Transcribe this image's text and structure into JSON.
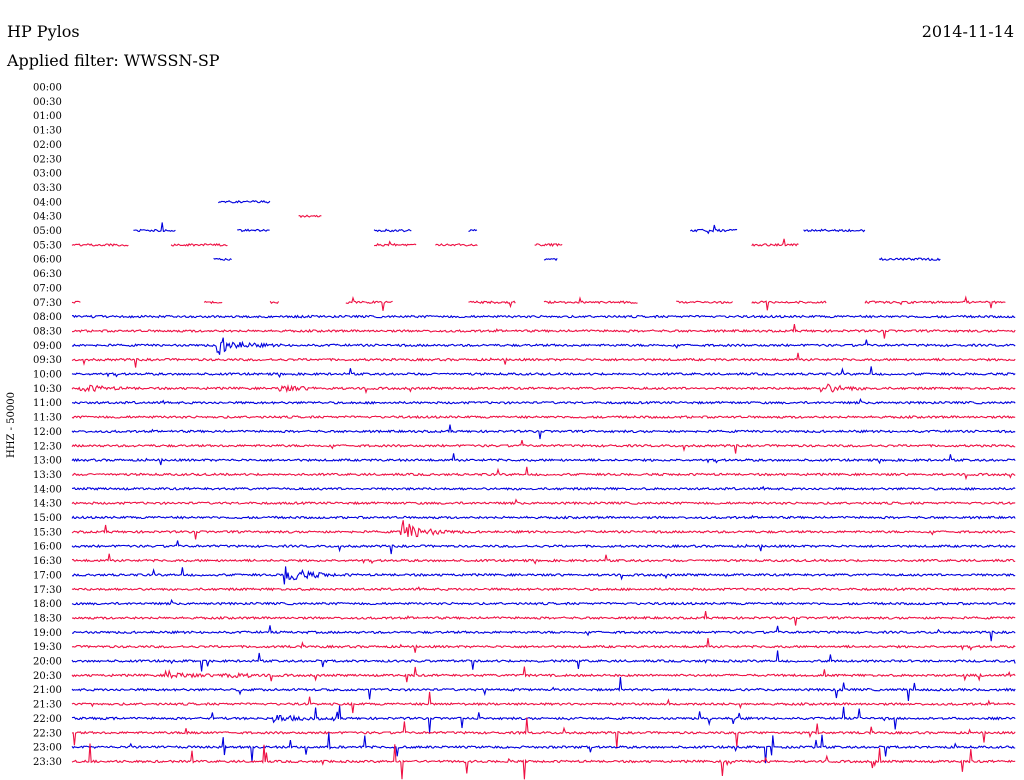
{
  "header": {
    "station": "HP Pylos",
    "date": "2014-11-14",
    "filter": "Applied filter: WWSSN-SP"
  },
  "chart_data": {
    "type": "line",
    "title": "HP Pylos",
    "date": "2014-11-14",
    "ylabel": "HHZ - 50000",
    "rows": [
      "00:00",
      "00:30",
      "01:00",
      "01:30",
      "02:00",
      "02:30",
      "03:00",
      "03:30",
      "04:00",
      "04:30",
      "05:00",
      "05:30",
      "06:00",
      "06:30",
      "07:00",
      "07:30",
      "08:00",
      "08:30",
      "09:00",
      "09:30",
      "10:00",
      "10:30",
      "11:00",
      "11:30",
      "12:00",
      "12:30",
      "13:00",
      "13:30",
      "14:00",
      "14:30",
      "15:00",
      "15:30",
      "16:00",
      "16:30",
      "17:00",
      "17:30",
      "18:00",
      "18:30",
      "19:00",
      "19:30",
      "20:00",
      "20:30",
      "21:00",
      "21:30",
      "22:00",
      "22:30",
      "23:00",
      "23:30"
    ],
    "trace_colors": [
      "#0000dd",
      "#ee1144"
    ],
    "continuous_from_row": 16,
    "partial_segments": [
      {
        "row": 8,
        "segments": [
          [
            0.155,
            0.21
          ]
        ]
      },
      {
        "row": 9,
        "segments": [
          [
            0.24,
            0.265
          ]
        ]
      },
      {
        "row": 10,
        "segments": [
          [
            0.065,
            0.11
          ],
          [
            0.175,
            0.21
          ],
          [
            0.32,
            0.36
          ],
          [
            0.42,
            0.43
          ],
          [
            0.655,
            0.705
          ],
          [
            0.775,
            0.84
          ]
        ]
      },
      {
        "row": 11,
        "segments": [
          [
            0.0,
            0.06
          ],
          [
            0.105,
            0.165
          ],
          [
            0.32,
            0.365
          ],
          [
            0.385,
            0.43
          ],
          [
            0.49,
            0.52
          ],
          [
            0.72,
            0.77
          ]
        ]
      },
      {
        "row": 12,
        "segments": [
          [
            0.15,
            0.17
          ],
          [
            0.5,
            0.515
          ],
          [
            0.855,
            0.92
          ]
        ]
      },
      {
        "row": 14,
        "segments": []
      },
      {
        "row": 15,
        "segments": [
          [
            0.0,
            0.01
          ],
          [
            0.14,
            0.16
          ],
          [
            0.21,
            0.22
          ],
          [
            0.29,
            0.34
          ],
          [
            0.42,
            0.47
          ],
          [
            0.5,
            0.6
          ],
          [
            0.64,
            0.7
          ],
          [
            0.72,
            0.8
          ],
          [
            0.84,
            0.99
          ]
        ]
      }
    ],
    "events": [
      {
        "row": 18,
        "pos": 0.155,
        "amp": 9
      },
      {
        "row": 21,
        "pos": 0.01,
        "amp": 4
      },
      {
        "row": 21,
        "pos": 0.22,
        "amp": 3
      },
      {
        "row": 21,
        "pos": 0.795,
        "amp": 5
      },
      {
        "row": 31,
        "pos": 0.35,
        "amp": 11
      },
      {
        "row": 34,
        "pos": 0.225,
        "amp": 10
      },
      {
        "row": 41,
        "pos": 0.1,
        "amp": 4
      },
      {
        "row": 41,
        "pos": 0.16,
        "amp": 4
      },
      {
        "row": 44,
        "pos": 0.215,
        "amp": 4
      }
    ]
  }
}
